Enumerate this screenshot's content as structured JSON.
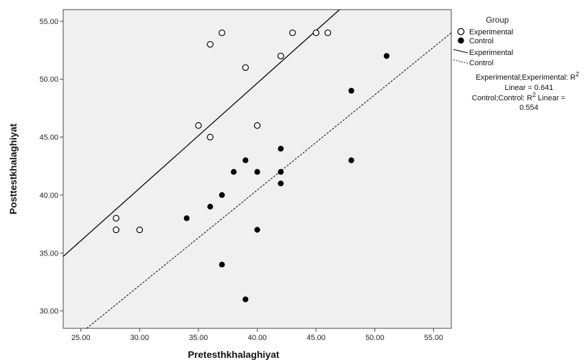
{
  "chart_data": {
    "type": "scatter",
    "xlabel": "Pretesthkhalaghiyat",
    "ylabel": "Posttestkhalaghiyat",
    "xlim": [
      23.5,
      56.5
    ],
    "ylim": [
      28.5,
      56.0
    ],
    "x_ticks": [
      "25.00",
      "30.00",
      "35.00",
      "40.00",
      "45.00",
      "50.00",
      "55.00"
    ],
    "x_tick_values": [
      25,
      30,
      35,
      40,
      45,
      50,
      55
    ],
    "y_ticks": [
      "30.00",
      "35.00",
      "40.00",
      "45.00",
      "50.00",
      "55.00"
    ],
    "y_tick_values": [
      30,
      35,
      40,
      45,
      50,
      55
    ],
    "grid": false,
    "legend_position": "right",
    "legend": {
      "title": "Group",
      "entries": [
        {
          "label": "Experimental",
          "kind": "marker-open"
        },
        {
          "label": "Control",
          "kind": "marker-filled"
        },
        {
          "label": "Experimental",
          "kind": "line-solid"
        },
        {
          "label": "Control",
          "kind": "line-dashed"
        }
      ]
    },
    "annotations": [
      {
        "lines": [
          "Experimental;Experimental: R² Linear = 0.641"
        ],
        "display_lines": [
          "Experimental;Experimental: R",
          "Linear = 0.641"
        ],
        "superscript": "2"
      },
      {
        "lines": [
          "Control;Control: R² Linear = 0.554"
        ],
        "display_lines": [
          "Control;Control: R",
          " Linear =",
          "0.554"
        ],
        "superscript": "2"
      }
    ],
    "series": [
      {
        "name": "Experimental",
        "marker": "open-circle",
        "color": "#1a1a1a",
        "points": [
          [
            28,
            38
          ],
          [
            28,
            37
          ],
          [
            30,
            37
          ],
          [
            35,
            46
          ],
          [
            36,
            45
          ],
          [
            36,
            53
          ],
          [
            37,
            54
          ],
          [
            39,
            51
          ],
          [
            40,
            46
          ],
          [
            42,
            52
          ],
          [
            43,
            54
          ],
          [
            45,
            54
          ],
          [
            46,
            54
          ]
        ],
        "fit_line": {
          "style": "solid",
          "start": [
            23.5,
            34.7
          ],
          "end": [
            47.0,
            56.0
          ]
        }
      },
      {
        "name": "Control",
        "marker": "filled-circle",
        "color": "#000000",
        "points": [
          [
            34,
            38
          ],
          [
            36,
            39
          ],
          [
            37,
            40
          ],
          [
            37,
            34
          ],
          [
            38,
            42
          ],
          [
            39,
            43
          ],
          [
            39,
            31
          ],
          [
            40,
            42
          ],
          [
            40,
            37
          ],
          [
            42,
            44
          ],
          [
            42,
            42
          ],
          [
            42,
            41
          ],
          [
            48,
            49
          ],
          [
            48,
            43
          ],
          [
            51,
            52
          ]
        ],
        "fit_line": {
          "style": "dashed",
          "start": [
            25.5,
            28.5
          ],
          "end": [
            56.5,
            54.0
          ]
        }
      }
    ]
  },
  "colors": {
    "plot_background": "#f0f0f0",
    "page_background": "#ffffff",
    "axis": "#333333",
    "marker": "#000000"
  }
}
